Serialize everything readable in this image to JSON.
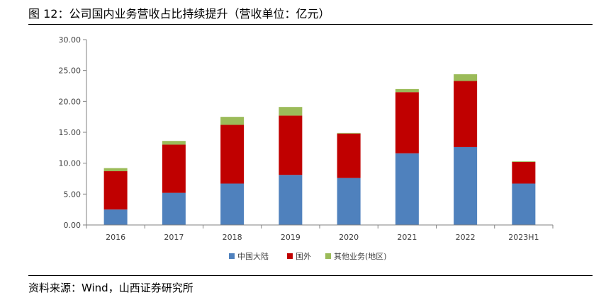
{
  "figure": {
    "title": "图 12：公司国内业务营收占比持续提升（营收单位：亿元）",
    "source": "资料来源：Wind，山西证券研究所"
  },
  "chart_data": {
    "type": "bar",
    "stacked": true,
    "categories": [
      "2016",
      "2017",
      "2018",
      "2019",
      "2020",
      "2021",
      "2022",
      "2023H1"
    ],
    "series": [
      {
        "name": "中国大陆",
        "color": "#4f81bd",
        "values": [
          2.5,
          5.2,
          6.7,
          8.1,
          7.6,
          11.6,
          12.6,
          6.7
        ]
      },
      {
        "name": "国外",
        "color": "#c00000",
        "values": [
          6.2,
          7.8,
          9.5,
          9.6,
          7.2,
          9.9,
          10.7,
          3.5
        ]
      },
      {
        "name": "其他业务(地区)",
        "color": "#9bbb59",
        "values": [
          0.5,
          0.6,
          1.3,
          1.4,
          0.1,
          0.5,
          1.1,
          0.1
        ]
      }
    ],
    "ylim": [
      0,
      30
    ],
    "yticks": [
      "0.00",
      "5.00",
      "10.00",
      "15.00",
      "20.00",
      "25.00",
      "30.00"
    ],
    "xlabel": "",
    "ylabel": "",
    "grid": false,
    "legend_position": "bottom"
  }
}
